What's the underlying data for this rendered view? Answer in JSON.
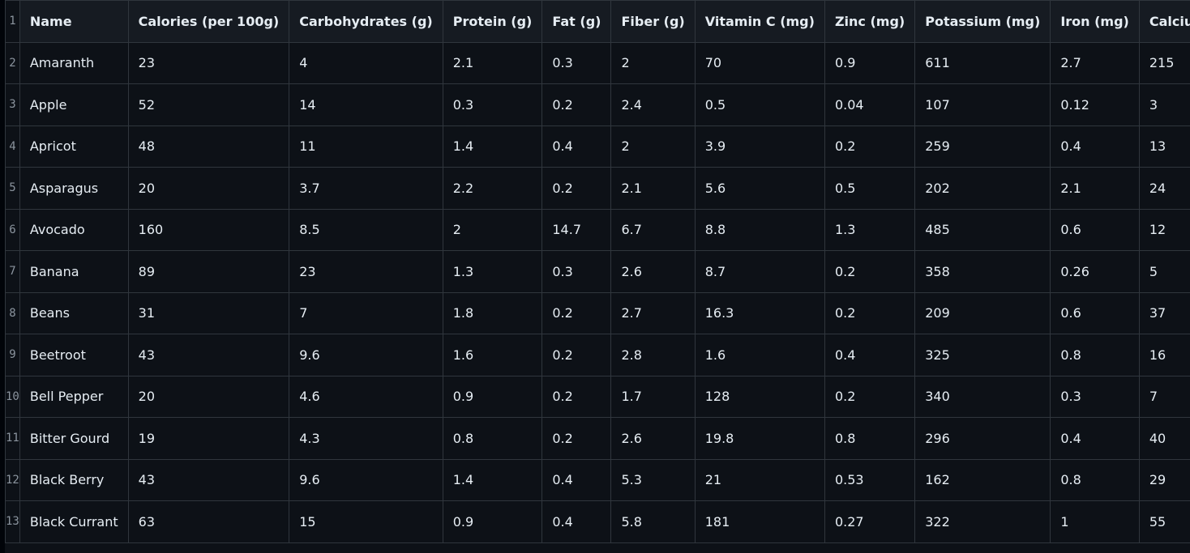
{
  "columns": [
    "Name",
    "Calories (per 100g)",
    "Carbohydrates (g)",
    "Protein (g)",
    "Fat (g)",
    "Fiber (g)",
    "Vitamin C (mg)",
    "Zinc (mg)",
    "Potassium (mg)",
    "Iron (mg)",
    "Calcium (mg)"
  ],
  "header_row_number": "1",
  "rows": [
    {
      "n": "2",
      "cells": [
        "Amaranth",
        "23",
        "4",
        "2.1",
        "0.3",
        "2",
        "70",
        "0.9",
        "611",
        "2.7",
        "215"
      ]
    },
    {
      "n": "3",
      "cells": [
        "Apple",
        "52",
        "14",
        "0.3",
        "0.2",
        "2.4",
        "0.5",
        "0.04",
        "107",
        "0.12",
        "3"
      ]
    },
    {
      "n": "4",
      "cells": [
        "Apricot",
        "48",
        "11",
        "1.4",
        "0.4",
        "2",
        "3.9",
        "0.2",
        "259",
        "0.4",
        "13"
      ]
    },
    {
      "n": "5",
      "cells": [
        "Asparagus",
        "20",
        "3.7",
        "2.2",
        "0.2",
        "2.1",
        "5.6",
        "0.5",
        "202",
        "2.1",
        "24"
      ]
    },
    {
      "n": "6",
      "cells": [
        "Avocado",
        "160",
        "8.5",
        "2",
        "14.7",
        "6.7",
        "8.8",
        "1.3",
        "485",
        "0.6",
        "12"
      ]
    },
    {
      "n": "7",
      "cells": [
        "Banana",
        "89",
        "23",
        "1.3",
        "0.3",
        "2.6",
        "8.7",
        "0.2",
        "358",
        "0.26",
        "5"
      ]
    },
    {
      "n": "8",
      "cells": [
        "Beans",
        "31",
        "7",
        "1.8",
        "0.2",
        "2.7",
        "16.3",
        "0.2",
        "209",
        "0.6",
        "37"
      ]
    },
    {
      "n": "9",
      "cells": [
        "Beetroot",
        "43",
        "9.6",
        "1.6",
        "0.2",
        "2.8",
        "1.6",
        "0.4",
        "325",
        "0.8",
        "16"
      ]
    },
    {
      "n": "10",
      "cells": [
        "Bell Pepper",
        "20",
        "4.6",
        "0.9",
        "0.2",
        "1.7",
        "128",
        "0.2",
        "340",
        "0.3",
        "7"
      ]
    },
    {
      "n": "11",
      "cells": [
        "Bitter Gourd",
        "19",
        "4.3",
        "0.8",
        "0.2",
        "2.6",
        "19.8",
        "0.8",
        "296",
        "0.4",
        "40"
      ]
    },
    {
      "n": "12",
      "cells": [
        "Black Berry",
        "43",
        "9.6",
        "1.4",
        "0.4",
        "5.3",
        "21",
        "0.53",
        "162",
        "0.8",
        "29"
      ]
    },
    {
      "n": "13",
      "cells": [
        "Black Currant",
        "63",
        "15",
        "0.9",
        "0.4",
        "5.8",
        "181",
        "0.27",
        "322",
        "1",
        "55"
      ]
    }
  ]
}
